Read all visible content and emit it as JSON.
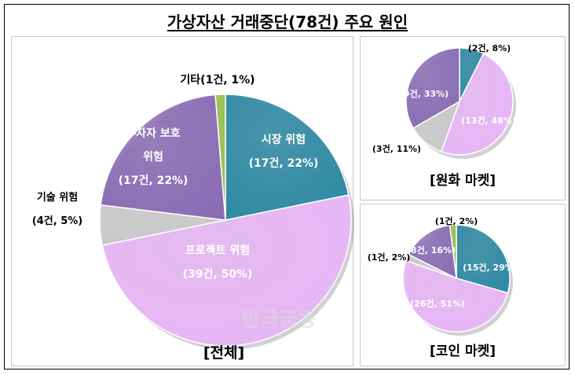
{
  "title": "가상자산 거래중단(78건) 주요 원인",
  "watermark": "한국금융",
  "colors": {
    "market": "#2f8aa4",
    "project": "#e7b6f6",
    "tech": "#c9c9c9",
    "investor": "#8a6db5",
    "other": "#98c04a"
  },
  "chart_data": [
    {
      "type": "pie",
      "caption": "[전체]",
      "categories": [
        "시장 위험",
        "프로젝트 위험",
        "기술 위험",
        "투자자 보호 위험",
        "기타"
      ],
      "values": [
        17,
        39,
        4,
        17,
        1
      ],
      "labels": [
        [
          "시장 위험",
          "(17건, 22%)"
        ],
        [
          "프로젝트 위험",
          "(39건, 50%)"
        ],
        [
          "기술 위험",
          "(4건, 5%)"
        ],
        [
          "투자자 보호",
          "위험",
          "(17건, 22%)"
        ],
        [
          "기타(1건, 1%)"
        ]
      ]
    },
    {
      "type": "pie",
      "caption": "[원화 마켓]",
      "categories": [
        "시장 위험",
        "프로젝트 위험",
        "기술 위험",
        "투자자 보호 위험"
      ],
      "values": [
        2,
        13,
        3,
        9
      ],
      "labels": [
        [
          "(2건, 8%)"
        ],
        [
          "(13건, 48%)"
        ],
        [
          "(3건, 11%)"
        ],
        [
          "(9건, 33%)"
        ]
      ]
    },
    {
      "type": "pie",
      "caption": "[코인 마켓]",
      "categories": [
        "시장 위험",
        "프로젝트 위험",
        "기술 위험",
        "투자자 보호 위험",
        "기타"
      ],
      "values": [
        15,
        26,
        1,
        8,
        1
      ],
      "labels": [
        [
          "(15건, 29%)"
        ],
        [
          "(26건, 51%)"
        ],
        [
          "(1건, 2%)"
        ],
        [
          "(8건, 16%)"
        ],
        [
          "(1건, 2%)"
        ]
      ]
    }
  ]
}
